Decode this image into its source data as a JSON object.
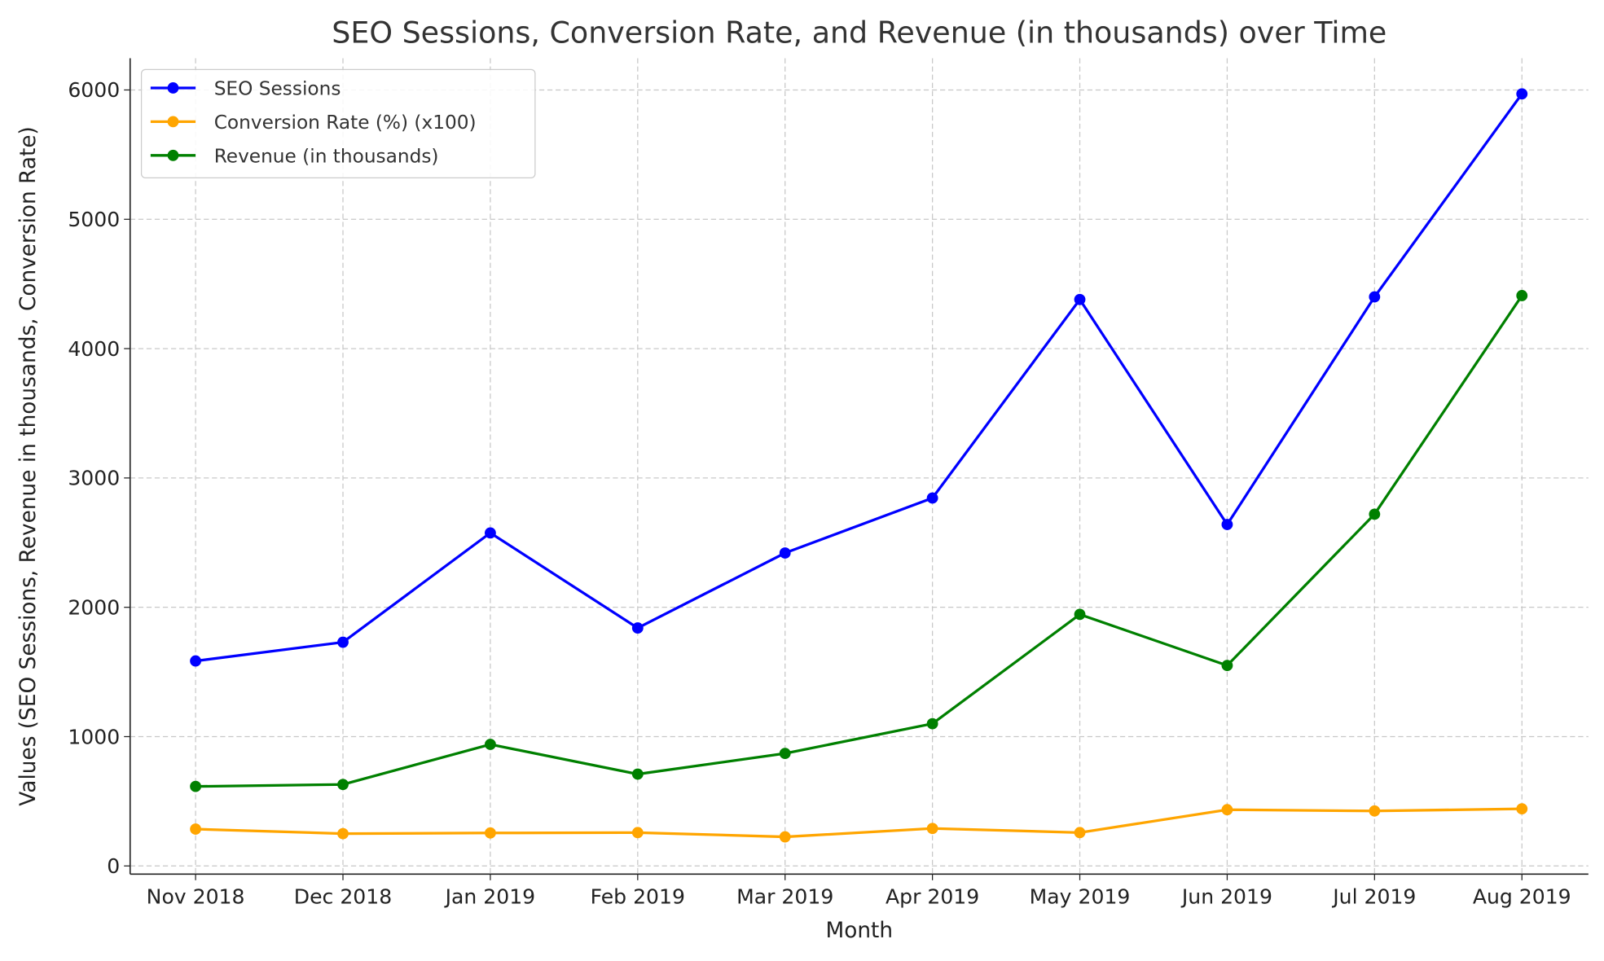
{
  "chart_data": {
    "type": "line",
    "title": "SEO Sessions, Conversion Rate, and Revenue (in thousands) over Time",
    "xlabel": "Month",
    "ylabel": "Values (SEO Sessions, Revenue in thousands, Conversion Rate)",
    "categories": [
      "Nov 2018",
      "Dec 2018",
      "Jan 2019",
      "Feb 2019",
      "Mar 2019",
      "Apr 2019",
      "May 2019",
      "Jun 2019",
      "Jul 2019",
      "Aug 2019"
    ],
    "yticks": [
      0,
      1000,
      2000,
      3000,
      4000,
      5000,
      6000
    ],
    "ylim": [
      -63,
      6245
    ],
    "grid": true,
    "legend_position": "top-left",
    "series": [
      {
        "name": "SEO Sessions",
        "color": "#0000ff",
        "values": [
          1585,
          1730,
          2575,
          1840,
          2420,
          2845,
          4380,
          2640,
          4400,
          5970
        ]
      },
      {
        "name": "Conversion Rate (%) (x100)",
        "color": "#ffa500",
        "values": [
          285,
          250,
          255,
          258,
          225,
          290,
          258,
          435,
          425,
          442
        ]
      },
      {
        "name": "Revenue (in thousands)",
        "color": "#008000",
        "values": [
          615,
          630,
          940,
          710,
          870,
          1100,
          1945,
          1550,
          2720,
          4410
        ]
      }
    ]
  }
}
